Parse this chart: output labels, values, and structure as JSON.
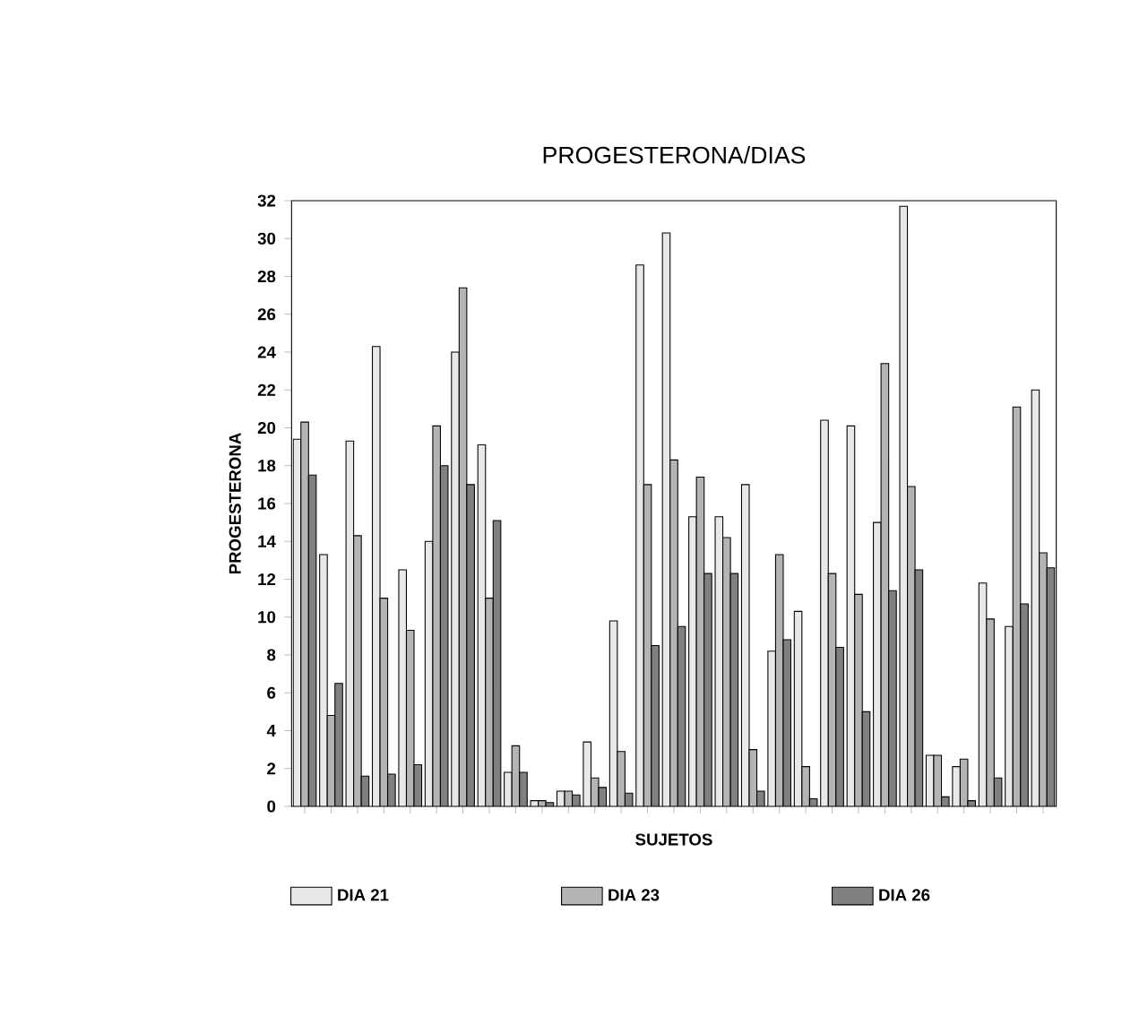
{
  "chart_data": {
    "type": "bar",
    "title": "PROGESTERONA/DIAS",
    "xlabel": "SUJETOS",
    "ylabel": "PROGESTERONA",
    "categories": [
      null,
      null,
      null,
      null,
      null,
      null,
      null,
      null,
      null,
      null,
      null,
      null,
      null,
      null,
      null,
      null,
      null,
      null,
      null,
      null,
      null,
      null,
      null,
      null,
      null,
      null,
      null,
      null,
      null
    ],
    "series": [
      {
        "name": "DIA 21",
        "color": "#e8e8e8",
        "values": [
          19.4,
          13.3,
          19.3,
          24.3,
          12.5,
          14.0,
          24.0,
          19.1,
          1.8,
          0.3,
          0.8,
          3.4,
          9.8,
          28.6,
          30.3,
          15.3,
          15.3,
          17.0,
          8.2,
          10.3,
          20.4,
          20.1,
          15.0,
          31.7,
          2.7,
          2.1,
          11.8,
          9.5,
          22.0
        ]
      },
      {
        "name": "DIA 23",
        "color": "#b4b4b4",
        "values": [
          20.3,
          4.8,
          14.3,
          11.0,
          9.3,
          20.1,
          27.4,
          11.0,
          3.2,
          0.3,
          0.8,
          1.5,
          2.9,
          17.0,
          18.3,
          17.4,
          14.2,
          3.0,
          13.3,
          2.1,
          12.3,
          11.2,
          23.4,
          16.9,
          2.7,
          2.5,
          9.9,
          21.1,
          13.4
        ]
      },
      {
        "name": "DIA 26",
        "color": "#808080",
        "values": [
          17.5,
          6.5,
          1.6,
          1.7,
          2.2,
          18.0,
          17.0,
          15.1,
          1.8,
          0.2,
          0.6,
          1.0,
          0.7,
          8.5,
          9.5,
          12.3,
          12.3,
          0.8,
          8.8,
          0.4,
          8.4,
          5.0,
          11.4,
          12.5,
          0.5,
          0.3,
          1.5,
          10.7,
          12.6
        ]
      }
    ],
    "ylim": [
      0,
      32
    ],
    "yticks": [
      0,
      2,
      4,
      6,
      8,
      10,
      12,
      14,
      16,
      18,
      20,
      22,
      24,
      26,
      28,
      30,
      32
    ],
    "legend": "bottom",
    "grid": false
  }
}
